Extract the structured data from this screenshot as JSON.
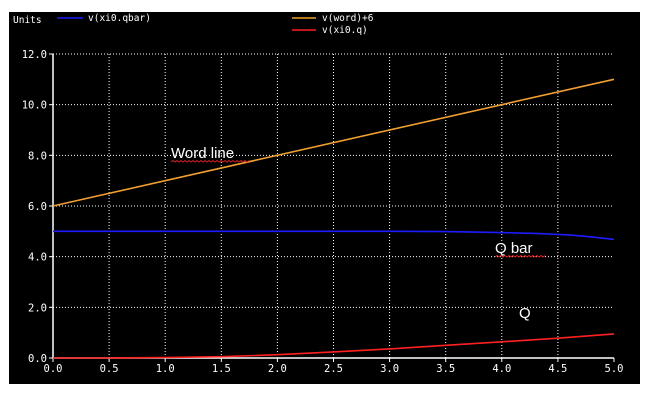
{
  "header": {
    "units_label": "Units"
  },
  "annotations": {
    "word_line": "Word line",
    "q_bar": "Q bar",
    "q": "Q"
  },
  "colors": {
    "background": "#000000",
    "axis": "#ffffff",
    "grid": "#ffffff",
    "series_qbar": "#1c1cff",
    "series_word": "#f0a030",
    "series_q": "#ff2020",
    "squiggle": "#d02020"
  },
  "chart_data": {
    "type": "line",
    "xlim": [
      0,
      5
    ],
    "ylim": [
      0,
      12
    ],
    "x_ticks": [
      "0.0",
      "0.5",
      "1.0",
      "1.5",
      "2.0",
      "2.5",
      "3.0",
      "3.5",
      "4.0",
      "4.5",
      "5.0"
    ],
    "y_ticks": [
      "0.0",
      "2.0",
      "4.0",
      "6.0",
      "8.0",
      "10.0",
      "12.0"
    ],
    "grid": true,
    "legend": "top",
    "series": [
      {
        "name": "v(xi0.qbar)",
        "color": "#1c1cff",
        "x": [
          0,
          0.5,
          1,
          1.5,
          2,
          2.5,
          3,
          3.5,
          4,
          4.3,
          4.6,
          4.8,
          5
        ],
        "y": [
          5.0,
          5.0,
          5.0,
          5.0,
          5.0,
          5.0,
          5.0,
          4.99,
          4.95,
          4.92,
          4.86,
          4.78,
          4.68
        ]
      },
      {
        "name": "v(word)+6",
        "color": "#f0a030",
        "x": [
          0,
          5
        ],
        "y": [
          6.0,
          11.0
        ]
      },
      {
        "name": "v(xi0.q)",
        "color": "#ff2020",
        "x": [
          0,
          0.5,
          1,
          1.5,
          2,
          2.5,
          3,
          3.5,
          4,
          4.5,
          5
        ],
        "y": [
          0.0,
          0.0,
          0.02,
          0.05,
          0.13,
          0.24,
          0.36,
          0.5,
          0.64,
          0.78,
          0.95
        ]
      }
    ]
  }
}
